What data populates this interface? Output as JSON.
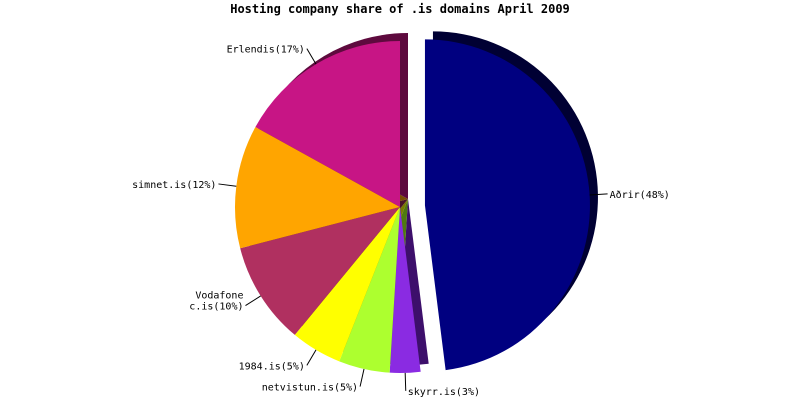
{
  "chart_data": {
    "type": "pie",
    "title": "Hosting company share of .is domains April 2009",
    "slices": [
      {
        "name": "Aðrir",
        "label": "Aðrir(48%)",
        "value": 48,
        "color": "#000080",
        "shadow": "#000033",
        "exploded": true
      },
      {
        "name": "skyrr.is",
        "label": "skyrr.is(3%)",
        "value": 3,
        "color": "#8a2be2",
        "shadow": "#3d0f6b",
        "exploded": false
      },
      {
        "name": "netvistun.is",
        "label": "netvistun.is(5%)",
        "value": 5,
        "color": "#adff2f",
        "shadow": "#4f7a10",
        "exploded": false
      },
      {
        "name": "1984.is",
        "label": "1984.is(5%)",
        "value": 5,
        "color": "#ffff00",
        "shadow": "#7a7a00",
        "exploded": false
      },
      {
        "name": "Vodafone c.is",
        "label": "Vodafone c.is(10%)",
        "value": 10,
        "color": "#b03060",
        "shadow": "#4a1428",
        "exploded": false
      },
      {
        "name": "simnet.is",
        "label": "simnet.is(12%)",
        "value": 12,
        "color": "#ffa500",
        "shadow": "#7a4f00",
        "exploded": false
      },
      {
        "name": "Erlendis",
        "label": "Erlendis(17%)",
        "value": 17,
        "color": "#c71585",
        "shadow": "#5e0a3e",
        "exploded": false
      }
    ],
    "label_lines": {
      "Aðrir": [
        "Aðrir(48%)"
      ],
      "skyrr.is": [
        "skyrr.is(3%)"
      ],
      "netvistun.is": [
        "netvistun.is(5%)"
      ],
      "1984.is": [
        "1984.is(5%)"
      ],
      "Vodafone c.is": [
        "Vodafone",
        "c.is(10%)"
      ],
      "simnet.is": [
        "simnet.is(12%)"
      ],
      "Erlendis": [
        "Erlendis(17%)"
      ]
    }
  }
}
